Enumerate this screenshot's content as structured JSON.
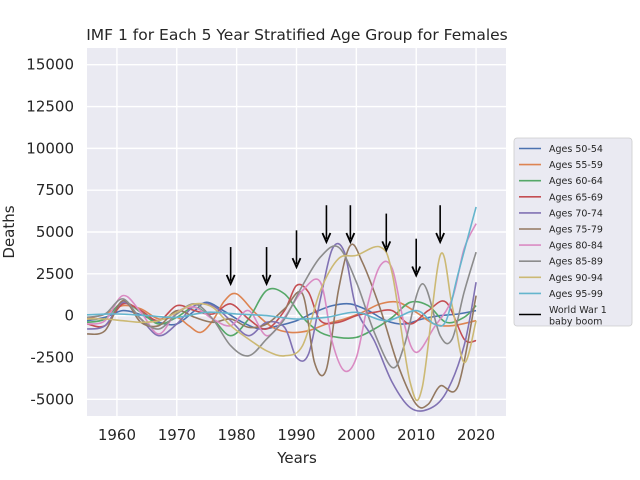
{
  "chart_data": {
    "type": "line",
    "title": "IMF 1 for Each 5 Year Stratified Age Group for Females",
    "xlabel": "Years",
    "ylabel": "Deaths",
    "xlim": [
      1955,
      2025
    ],
    "ylim": [
      -6000,
      16000
    ],
    "xticks": [
      1960,
      1970,
      1980,
      1990,
      2000,
      2010,
      2020
    ],
    "yticks": [
      -5000,
      -2500,
      0,
      2500,
      5000,
      7500,
      10000,
      12500,
      15000
    ],
    "grid": true,
    "legend_position": "right",
    "colors": {
      "background": "#eaeaf2",
      "grid": "#ffffff"
    },
    "series": [
      {
        "name": "Ages 50-54",
        "color": "#4c72b0",
        "x": [
          1955,
          1958,
          1961,
          1964,
          1967,
          1970,
          1973,
          1975,
          1978,
          1981,
          1984,
          1987,
          1990,
          1993,
          1996,
          1999,
          2002,
          2005,
          2008,
          2011,
          2014,
          2017,
          2020
        ],
        "y": [
          -300,
          -100,
          300,
          50,
          -400,
          -500,
          300,
          800,
          250,
          -400,
          -800,
          -600,
          -300,
          200,
          600,
          700,
          300,
          -300,
          -500,
          -200,
          0,
          100,
          300
        ]
      },
      {
        "name": "Ages 55-59",
        "color": "#dd8452",
        "x": [
          1955,
          1958,
          1961,
          1964,
          1967,
          1970,
          1972,
          1974,
          1976,
          1978,
          1980,
          1983,
          1986,
          1989,
          1992,
          1995,
          1998,
          2001,
          2004,
          2007,
          2010,
          2013,
          2016,
          2020
        ],
        "y": [
          -200,
          100,
          600,
          400,
          -200,
          -100,
          -600,
          -1000,
          -300,
          900,
          1300,
          200,
          -700,
          -1000,
          -900,
          -500,
          -200,
          200,
          700,
          800,
          200,
          -500,
          -600,
          -300
        ]
      },
      {
        "name": "Ages 60-64",
        "color": "#55a868",
        "x": [
          1955,
          1958,
          1961,
          1964,
          1967,
          1970,
          1973,
          1976,
          1979,
          1982,
          1985,
          1988,
          1991,
          1994,
          1997,
          2000,
          2003,
          2006,
          2009,
          2012,
          2015,
          2018,
          2020
        ],
        "y": [
          -400,
          -200,
          800,
          200,
          -500,
          -100,
          500,
          -200,
          -1200,
          -200,
          1500,
          1300,
          -100,
          -1000,
          -1300,
          -1300,
          -800,
          -100,
          800,
          600,
          -400,
          -100,
          600
        ]
      },
      {
        "name": "Ages 65-69",
        "color": "#c44e52",
        "x": [
          1955,
          1958,
          1961,
          1964,
          1967,
          1970,
          1973,
          1976,
          1979,
          1982,
          1985,
          1988,
          1990,
          1992,
          1994,
          1997,
          2000,
          2003,
          2006,
          2009,
          2012,
          2015,
          2018,
          2020
        ],
        "y": [
          -500,
          -600,
          700,
          300,
          -300,
          600,
          300,
          100,
          700,
          -200,
          -800,
          300,
          1800,
          1400,
          -300,
          -400,
          0,
          200,
          300,
          -500,
          300,
          800,
          -1400,
          -1500
        ]
      },
      {
        "name": "Ages 70-74",
        "color": "#8172b3",
        "x": [
          1955,
          1958,
          1961,
          1964,
          1967,
          1970,
          1973,
          1976,
          1979,
          1982,
          1985,
          1988,
          1990,
          1992,
          1994,
          1996,
          1998,
          2000,
          2003,
          2006,
          2009,
          2012,
          2015,
          2018,
          2020
        ],
        "y": [
          -800,
          -600,
          800,
          -200,
          -1200,
          -500,
          600,
          600,
          -300,
          -1200,
          -400,
          -700,
          -2500,
          -2300,
          1000,
          4000,
          3800,
          400,
          -1500,
          -4000,
          -5500,
          -5600,
          -4600,
          -1800,
          2000
        ]
      },
      {
        "name": "Ages 75-79",
        "color": "#937860",
        "x": [
          1955,
          1958,
          1961,
          1964,
          1967,
          1970,
          1973,
          1976,
          1979,
          1982,
          1985,
          1988,
          1991,
          1993,
          1995,
          1997,
          1999,
          2001,
          2004,
          2007,
          2010,
          2012,
          2014,
          2017,
          2020
        ],
        "y": [
          -1100,
          -900,
          900,
          -400,
          -600,
          300,
          -100,
          -400,
          -200,
          -700,
          -500,
          400,
          1300,
          -2800,
          -3200,
          1500,
          4200,
          3200,
          400,
          -3000,
          -5300,
          -5300,
          -4200,
          -4200,
          1200
        ]
      },
      {
        "name": "Ages 80-84",
        "color": "#da8bc3",
        "x": [
          1955,
          1958,
          1961,
          1964,
          1967,
          1970,
          1973,
          1976,
          1979,
          1982,
          1985,
          1988,
          1991,
          1994,
          1996,
          1998,
          2000,
          2002,
          2004,
          2006,
          2008,
          2010,
          2013,
          2016,
          2018,
          2020
        ],
        "y": [
          -500,
          -300,
          1200,
          200,
          -1100,
          200,
          500,
          -200,
          -600,
          300,
          -1200,
          -100,
          1500,
          2000,
          -1600,
          -3300,
          -2500,
          800,
          3000,
          2800,
          -500,
          -2200,
          -700,
          1000,
          4000,
          5500
        ]
      },
      {
        "name": "Ages 85-89",
        "color": "#8c8c8c",
        "x": [
          1955,
          1958,
          1961,
          1964,
          1967,
          1970,
          1973,
          1976,
          1979,
          1982,
          1985,
          1988,
          1991,
          1994,
          1997,
          2000,
          2003,
          2006,
          2008,
          2011,
          2014,
          2016,
          2018,
          2020
        ],
        "y": [
          -100,
          100,
          1000,
          -200,
          -800,
          100,
          700,
          -200,
          -1800,
          -2400,
          -1400,
          -200,
          1800,
          3500,
          4100,
          2000,
          -1000,
          -3100,
          -1800,
          1900,
          -1200,
          -1400,
          1400,
          3800
        ]
      },
      {
        "name": "Ages 90-94",
        "color": "#ccb974",
        "x": [
          1955,
          1958,
          1961,
          1964,
          1967,
          1970,
          1973,
          1976,
          1979,
          1982,
          1985,
          1988,
          1991,
          1994,
          1997,
          2000,
          2004,
          2006,
          2009,
          2011,
          2014,
          2016,
          2018,
          2020
        ],
        "y": [
          -200,
          -200,
          -300,
          -400,
          -300,
          200,
          700,
          500,
          -600,
          -1400,
          -2100,
          -2400,
          -1800,
          1500,
          3400,
          3600,
          4100,
          2500,
          -4000,
          -4300,
          3600,
          600,
          -2800,
          -300
        ]
      },
      {
        "name": "Ages 95-99",
        "color": "#64b5cd",
        "x": [
          1955,
          1960,
          1965,
          1970,
          1975,
          1980,
          1985,
          1990,
          1995,
          2000,
          2005,
          2010,
          2013,
          2015,
          2017,
          2020
        ],
        "y": [
          50,
          100,
          0,
          -100,
          200,
          100,
          0,
          -200,
          -100,
          200,
          -300,
          300,
          -500,
          -300,
          2500,
          6500
        ]
      }
    ],
    "annotations": {
      "legend_label": "World War 1\nbaby boom",
      "arrow_years": [
        1979,
        1985,
        1990,
        1995,
        1999,
        2005,
        2010,
        2014
      ]
    }
  }
}
